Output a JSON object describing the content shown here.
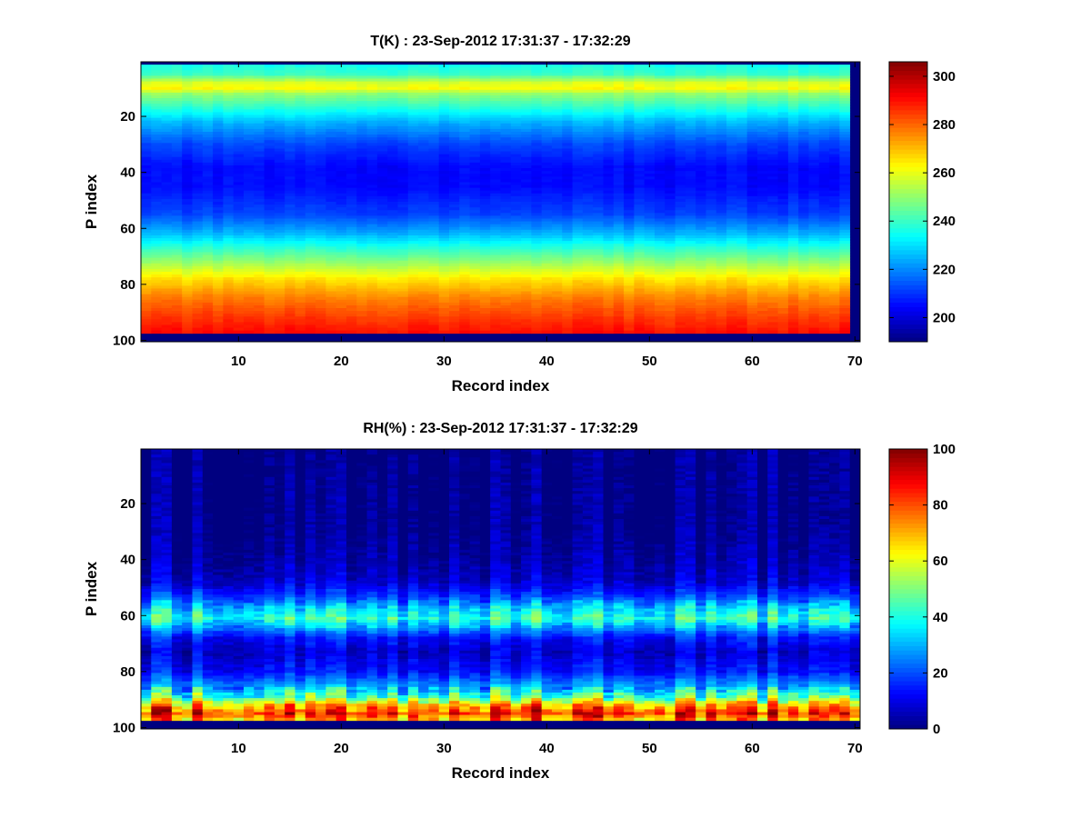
{
  "chart_data": [
    {
      "type": "heatmap",
      "title": "T(K) : 23-Sep-2012 17:31:37 - 17:32:29",
      "xlabel": "Record index",
      "ylabel": "P index",
      "xlim": [
        0.5,
        70.5
      ],
      "ylim": [
        0.5,
        100.5
      ],
      "y_reversed": true,
      "x_ticks": [
        10,
        20,
        30,
        40,
        50,
        60,
        70
      ],
      "y_ticks": [
        20,
        40,
        60,
        80,
        100
      ],
      "colormap": "jet",
      "colorbar": {
        "clim": [
          190,
          306
        ],
        "ticks": [
          200,
          220,
          240,
          260,
          280,
          300
        ]
      },
      "valid_x_range": [
        1,
        69
      ],
      "valid_y_range": [
        2,
        97
      ],
      "profile": [
        {
          "p": 2,
          "value": 236
        },
        {
          "p": 5,
          "value": 240
        },
        {
          "p": 8,
          "value": 258
        },
        {
          "p": 10,
          "value": 262
        },
        {
          "p": 12,
          "value": 250
        },
        {
          "p": 16,
          "value": 240
        },
        {
          "p": 22,
          "value": 225
        },
        {
          "p": 30,
          "value": 212
        },
        {
          "p": 38,
          "value": 205
        },
        {
          "p": 45,
          "value": 205
        },
        {
          "p": 55,
          "value": 212
        },
        {
          "p": 62,
          "value": 225
        },
        {
          "p": 67,
          "value": 238
        },
        {
          "p": 72,
          "value": 250
        },
        {
          "p": 78,
          "value": 265
        },
        {
          "p": 85,
          "value": 277
        },
        {
          "p": 92,
          "value": 285
        },
        {
          "p": 97,
          "value": 290
        }
      ],
      "variability": 4,
      "fill_value": 190
    },
    {
      "type": "heatmap",
      "title": "RH(%) : 23-Sep-2012 17:31:37 - 17:32:29",
      "xlabel": "Record index",
      "ylabel": "P index",
      "xlim": [
        0.5,
        70.5
      ],
      "ylim": [
        0.5,
        100.5
      ],
      "y_reversed": true,
      "x_ticks": [
        10,
        20,
        30,
        40,
        50,
        60,
        70
      ],
      "y_ticks": [
        20,
        40,
        60,
        80,
        100
      ],
      "colormap": "jet",
      "colorbar": {
        "clim": [
          0,
          100
        ],
        "ticks": [
          0,
          20,
          40,
          60,
          80,
          100
        ]
      },
      "valid_x_range": [
        1,
        70
      ],
      "valid_y_range": [
        1,
        97
      ],
      "profile": [
        {
          "p": 1,
          "value": 0
        },
        {
          "p": 30,
          "value": 1
        },
        {
          "p": 40,
          "value": 4
        },
        {
          "p": 48,
          "value": 8
        },
        {
          "p": 53,
          "value": 18
        },
        {
          "p": 57,
          "value": 32
        },
        {
          "p": 61,
          "value": 42
        },
        {
          "p": 64,
          "value": 30
        },
        {
          "p": 68,
          "value": 14
        },
        {
          "p": 73,
          "value": 8
        },
        {
          "p": 80,
          "value": 14
        },
        {
          "p": 85,
          "value": 28
        },
        {
          "p": 89,
          "value": 45
        },
        {
          "p": 92,
          "value": 70
        },
        {
          "p": 95,
          "value": 85
        },
        {
          "p": 97,
          "value": 72
        }
      ],
      "variability": 12,
      "fill_value": 0
    }
  ]
}
